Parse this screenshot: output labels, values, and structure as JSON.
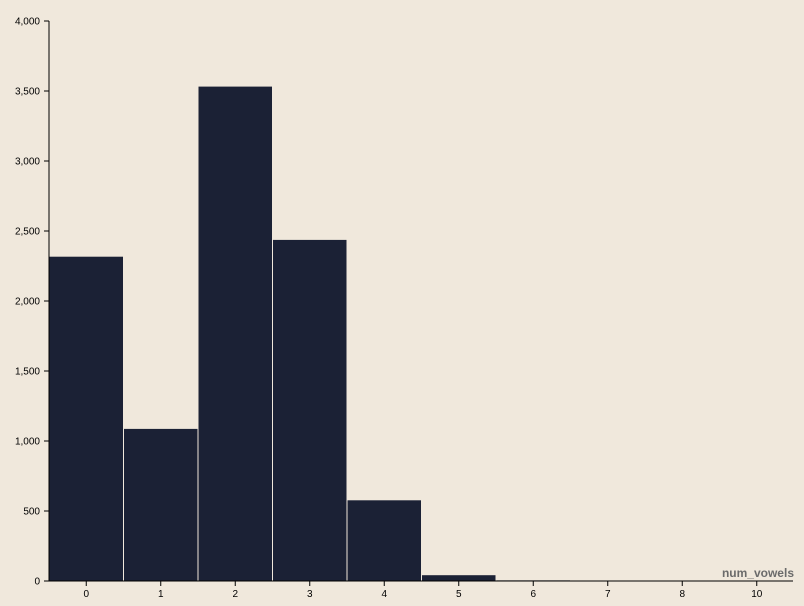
{
  "colors": {
    "background": "#f0e8dc",
    "bar_fill": "#1b2135",
    "bar_stroke": "#f0e8dc",
    "axis": "#000000",
    "xlabel": "#6b6b6b"
  },
  "chart_data": {
    "type": "bar",
    "title": "",
    "xlabel": "num_vowels",
    "ylabel": "",
    "categories": [
      "0",
      "1",
      "2",
      "3",
      "4",
      "5",
      "6",
      "7",
      "8",
      "10"
    ],
    "values": [
      2320,
      1090,
      3535,
      2440,
      580,
      45,
      8,
      2,
      1,
      1
    ],
    "y_ticks": [
      0,
      500,
      1000,
      1500,
      2000,
      2500,
      3000,
      3500,
      4000
    ],
    "y_tick_labels": [
      "0",
      "500",
      "1,000",
      "1,500",
      "2,000",
      "2,500",
      "3,000",
      "3,500",
      "4,000"
    ],
    "ylim": [
      0,
      4000
    ],
    "grid": false,
    "legend": "none"
  }
}
